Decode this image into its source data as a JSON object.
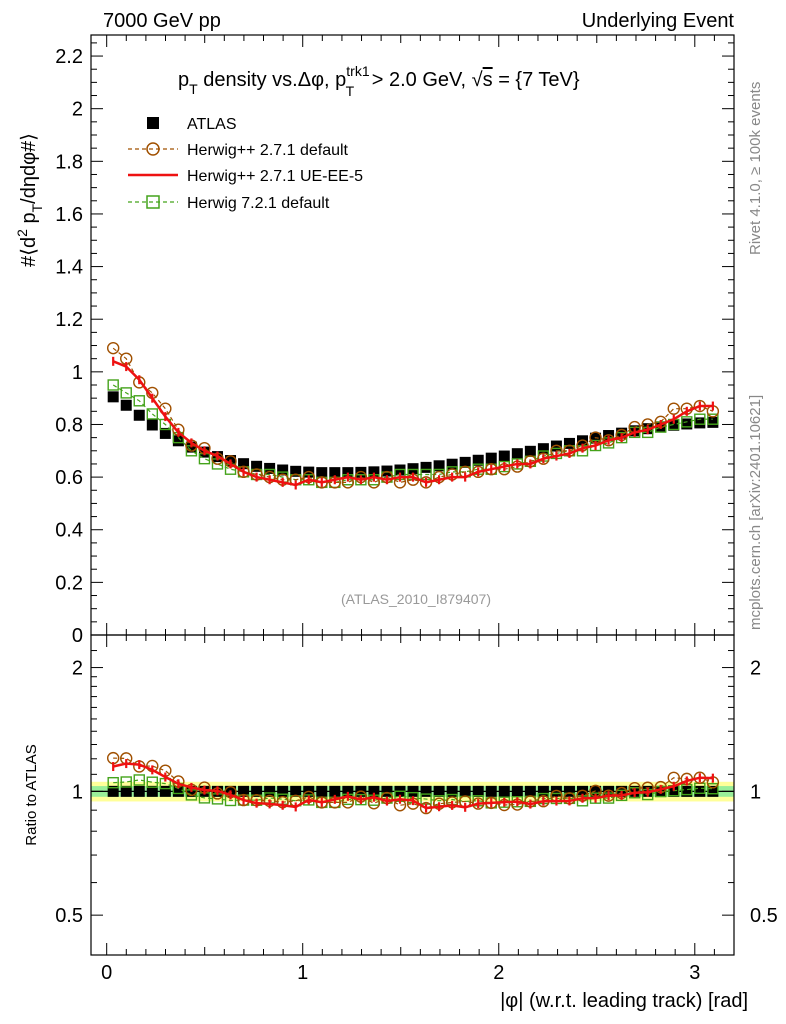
{
  "header": {
    "left": "7000 GeV pp",
    "right": "Underlying Event"
  },
  "side_labels": {
    "rivet": "Rivet 4.1.0, ≥ 100k events",
    "mcplots": "mcplots.cern.ch [arXiv:2401.10621]"
  },
  "chart_data": {
    "type": "scatter",
    "title": "pT density vs.Δφ, pT trk1 > 2.0 GeV, √s = {7 TeV}",
    "title_parts": {
      "p": "p",
      "t_sub": "T",
      "mid": " density vs.Δφ, p",
      "trk_sup": "trk1",
      "t_sub2": "T",
      "tail1": " > 2.0 GeV, ",
      "sqrt": "√",
      "s": "s",
      "tail2": " = {7 TeV}"
    },
    "analysis_id": "(ATLAS_2010_I879407)",
    "xlabel": "|φ| (w.r.t. leading track) [rad]",
    "ylabel": "#⟨d² pT/dηdφ#⟩",
    "ylabel_parts": {
      "a": "#⟨d",
      "sup": "2",
      "b": " p",
      "sub": "T",
      "c": "/dηdφ#⟩"
    },
    "ratio_ylabel": "Ratio to ATLAS",
    "xlim": [
      -0.08,
      3.2
    ],
    "ylim": [
      0,
      2.28
    ],
    "ratio_ylim": [
      0.4,
      2.4
    ],
    "x_ticks": [
      0,
      1,
      2,
      3
    ],
    "x_tick_labels": [
      "0",
      "1",
      "2",
      "3"
    ],
    "y_ticks": [
      0,
      0.2,
      0.4,
      0.6,
      0.8,
      1,
      1.2,
      1.4,
      1.6,
      1.8,
      2,
      2.2
    ],
    "y_tick_labels": [
      "0",
      "0.2",
      "0.4",
      "0.6",
      "0.8",
      "1",
      "1.2",
      "1.4",
      "1.6",
      "1.8",
      "2",
      "2.2"
    ],
    "ratio_ticks": [
      0.5,
      1,
      2
    ],
    "ratio_tick_labels": [
      "0.5",
      "1",
      "2"
    ],
    "ratio_band": {
      "inner": [
        0.97,
        1.03
      ],
      "outer": [
        0.945,
        1.055
      ]
    },
    "x": [
      0.0332,
      0.0997,
      0.1662,
      0.2327,
      0.2992,
      0.3657,
      0.4322,
      0.4987,
      0.5652,
      0.6317,
      0.6982,
      0.7647,
      0.8312,
      0.8977,
      0.9642,
      1.0307,
      1.0972,
      1.1637,
      1.2302,
      1.2967,
      1.3632,
      1.4297,
      1.4962,
      1.5627,
      1.6292,
      1.6957,
      1.7622,
      1.8287,
      1.8952,
      1.9617,
      2.0282,
      2.0947,
      2.1612,
      2.2277,
      2.2942,
      2.3607,
      2.4272,
      2.4937,
      2.5602,
      2.6267,
      2.6932,
      2.7597,
      2.8262,
      2.8927,
      2.9592,
      3.0257,
      3.0922
    ],
    "series": [
      {
        "name": "ATLAS",
        "color": "#000000",
        "marker": "square-filled",
        "values": [
          0.905,
          0.873,
          0.835,
          0.798,
          0.766,
          0.738,
          0.714,
          0.695,
          0.678,
          0.663,
          0.651,
          0.641,
          0.633,
          0.627,
          0.622,
          0.619,
          0.617,
          0.617,
          0.617,
          0.618,
          0.62,
          0.623,
          0.627,
          0.632,
          0.637,
          0.643,
          0.649,
          0.656,
          0.664,
          0.672,
          0.68,
          0.689,
          0.698,
          0.708,
          0.718,
          0.728,
          0.738,
          0.748,
          0.758,
          0.767,
          0.776,
          0.784,
          0.791,
          0.797,
          0.802,
          0.806,
          0.808
        ]
      },
      {
        "name": "Herwig++ 2.7.1 default",
        "color": "#a05000",
        "marker": "circle-open",
        "values": [
          1.09,
          1.05,
          0.96,
          0.92,
          0.86,
          0.78,
          0.72,
          0.71,
          0.67,
          0.66,
          0.62,
          0.61,
          0.6,
          0.59,
          0.59,
          0.6,
          0.58,
          0.58,
          0.58,
          0.6,
          0.58,
          0.6,
          0.58,
          0.59,
          0.58,
          0.6,
          0.61,
          0.62,
          0.62,
          0.63,
          0.63,
          0.64,
          0.66,
          0.67,
          0.7,
          0.7,
          0.72,
          0.75,
          0.74,
          0.76,
          0.79,
          0.8,
          0.81,
          0.86,
          0.86,
          0.87,
          0.85
        ]
      },
      {
        "name": "Herwig++ 2.7.1 UE-EE-5",
        "color": "#ee1111",
        "marker": "line-errorbars",
        "values": [
          1.04,
          1.02,
          0.97,
          0.9,
          0.83,
          0.77,
          0.73,
          0.7,
          0.68,
          0.65,
          0.62,
          0.6,
          0.59,
          0.58,
          0.57,
          0.59,
          0.58,
          0.59,
          0.6,
          0.59,
          0.6,
          0.59,
          0.6,
          0.6,
          0.58,
          0.59,
          0.6,
          0.6,
          0.62,
          0.63,
          0.64,
          0.65,
          0.65,
          0.67,
          0.68,
          0.69,
          0.71,
          0.72,
          0.74,
          0.75,
          0.77,
          0.78,
          0.8,
          0.82,
          0.85,
          0.87,
          0.87
        ]
      },
      {
        "name": "Herwig 7.2.1 default",
        "color": "#44a31b",
        "marker": "square-open",
        "values": [
          0.95,
          0.92,
          0.89,
          0.84,
          0.8,
          0.75,
          0.7,
          0.67,
          0.65,
          0.63,
          0.62,
          0.61,
          0.61,
          0.6,
          0.59,
          0.59,
          0.58,
          0.58,
          0.59,
          0.59,
          0.59,
          0.6,
          0.61,
          0.61,
          0.61,
          0.61,
          0.62,
          0.62,
          0.63,
          0.63,
          0.64,
          0.65,
          0.66,
          0.68,
          0.69,
          0.7,
          0.7,
          0.72,
          0.73,
          0.75,
          0.77,
          0.77,
          0.79,
          0.8,
          0.81,
          0.82,
          0.82
        ]
      }
    ],
    "legend": [
      "ATLAS",
      "Herwig++ 2.7.1 default",
      "Herwig++ 2.7.1 UE-EE-5",
      "Herwig 7.2.1 default"
    ],
    "legend_position": "top-left"
  }
}
